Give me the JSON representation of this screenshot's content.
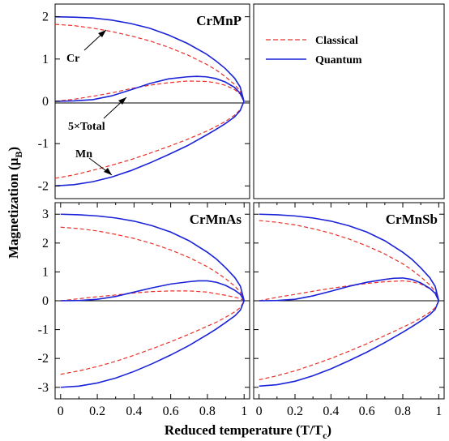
{
  "colors": {
    "classical": "#e8302a",
    "quantum": "#1a23d8",
    "axis": "#000000"
  },
  "legend": {
    "placement": "top-right panel",
    "classical": "Classical",
    "quantum": "Quantum"
  },
  "axes": {
    "xlabel": "Reduced temperature (T/T",
    "xlabel_sub": "c",
    "xlabel_close": ")",
    "ylabel": "Magnetization  (μ",
    "ylabel_sub": "B",
    "ylabel_close": ")"
  },
  "annotations": {
    "cr": "Cr",
    "total": "5×Total",
    "mn": "Mn"
  },
  "chart_data": [
    {
      "type": "line",
      "title": "CrMnP",
      "xlim": [
        0,
        1.03
      ],
      "ylim": [
        -2.3,
        2.3
      ],
      "xticks": [],
      "xtick_labels": [],
      "yticks": [
        -2,
        -1,
        0,
        1,
        2
      ],
      "ytick_labels": [
        "-2",
        "-1",
        "0",
        "1",
        "2"
      ],
      "series": [
        {
          "name": "Classical",
          "kind": "classical",
          "group": "Cr",
          "x": [
            0,
            0.1,
            0.2,
            0.3,
            0.4,
            0.5,
            0.6,
            0.7,
            0.8,
            0.85,
            0.9,
            0.95,
            0.98,
            1
          ],
          "y": [
            1.82,
            1.79,
            1.73,
            1.65,
            1.55,
            1.43,
            1.28,
            1.1,
            0.88,
            0.75,
            0.59,
            0.4,
            0.24,
            0
          ]
        },
        {
          "name": "Classical",
          "kind": "classical",
          "group": "Mn",
          "x": [
            0,
            0.1,
            0.2,
            0.3,
            0.4,
            0.5,
            0.6,
            0.7,
            0.8,
            0.85,
            0.9,
            0.95,
            0.98,
            1
          ],
          "y": [
            -1.82,
            -1.74,
            -1.63,
            -1.51,
            -1.38,
            -1.23,
            -1.07,
            -0.9,
            -0.71,
            -0.6,
            -0.48,
            -0.33,
            -0.2,
            0
          ]
        },
        {
          "name": "Classical",
          "kind": "classical",
          "group": "5×Total",
          "x": [
            0,
            0.1,
            0.2,
            0.3,
            0.4,
            0.5,
            0.6,
            0.7,
            0.8,
            0.85,
            0.9,
            0.95,
            0.98,
            1
          ],
          "y": [
            0,
            0.05,
            0.12,
            0.2,
            0.3,
            0.38,
            0.44,
            0.48,
            0.47,
            0.44,
            0.38,
            0.28,
            0.17,
            0
          ]
        },
        {
          "name": "Quantum",
          "kind": "quantum",
          "group": "Cr",
          "x": [
            0,
            0.1,
            0.2,
            0.3,
            0.4,
            0.5,
            0.6,
            0.7,
            0.8,
            0.85,
            0.9,
            0.95,
            0.98,
            1
          ],
          "y": [
            2.0,
            1.99,
            1.97,
            1.92,
            1.84,
            1.73,
            1.57,
            1.37,
            1.12,
            0.96,
            0.78,
            0.55,
            0.34,
            0
          ]
        },
        {
          "name": "Quantum",
          "kind": "quantum",
          "group": "Mn",
          "x": [
            0,
            0.1,
            0.2,
            0.3,
            0.4,
            0.5,
            0.6,
            0.7,
            0.8,
            0.85,
            0.9,
            0.95,
            0.98,
            1
          ],
          "y": [
            -2.0,
            -1.97,
            -1.9,
            -1.79,
            -1.64,
            -1.46,
            -1.26,
            -1.05,
            -0.8,
            -0.67,
            -0.53,
            -0.37,
            -0.22,
            0
          ]
        },
        {
          "name": "Quantum",
          "kind": "quantum",
          "group": "5×Total",
          "x": [
            0,
            0.1,
            0.2,
            0.3,
            0.4,
            0.5,
            0.6,
            0.7,
            0.75,
            0.8,
            0.85,
            0.9,
            0.95,
            0.98,
            1
          ],
          "y": [
            0,
            0.01,
            0.04,
            0.13,
            0.27,
            0.42,
            0.53,
            0.58,
            0.59,
            0.58,
            0.54,
            0.46,
            0.33,
            0.19,
            0
          ]
        }
      ]
    },
    {
      "type": "line",
      "title": "CrMnAs",
      "xlim": [
        -0.03,
        1.03
      ],
      "ylim": [
        -3.4,
        3.4
      ],
      "xticks": [
        0,
        0.2,
        0.4,
        0.6,
        0.8,
        1
      ],
      "xtick_labels": [
        "0",
        "0.2",
        "0.4",
        "0.6",
        "0.8",
        "1"
      ],
      "yticks": [
        -3,
        -2,
        -1,
        0,
        1,
        2,
        3
      ],
      "ytick_labels": [
        "-3",
        "-2",
        "-1",
        "0",
        "1",
        "2",
        "3"
      ],
      "series": [
        {
          "name": "Classical",
          "kind": "classical",
          "group": "Cr",
          "x": [
            0,
            0.1,
            0.2,
            0.3,
            0.4,
            0.5,
            0.6,
            0.7,
            0.8,
            0.85,
            0.9,
            0.95,
            0.98,
            1
          ],
          "y": [
            2.55,
            2.5,
            2.42,
            2.3,
            2.16,
            1.98,
            1.76,
            1.5,
            1.18,
            0.98,
            0.76,
            0.5,
            0.3,
            0
          ]
        },
        {
          "name": "Classical",
          "kind": "classical",
          "group": "Mn",
          "x": [
            0,
            0.1,
            0.2,
            0.3,
            0.4,
            0.5,
            0.6,
            0.7,
            0.8,
            0.85,
            0.9,
            0.95,
            0.98,
            1
          ],
          "y": [
            -2.55,
            -2.43,
            -2.28,
            -2.1,
            -1.89,
            -1.66,
            -1.42,
            -1.16,
            -0.88,
            -0.74,
            -0.57,
            -0.38,
            -0.23,
            0
          ]
        },
        {
          "name": "Classical",
          "kind": "classical",
          "group": "5×Total",
          "x": [
            0,
            0.1,
            0.2,
            0.3,
            0.4,
            0.5,
            0.6,
            0.7,
            0.8,
            0.85,
            0.9,
            0.95,
            0.98,
            1
          ],
          "y": [
            0,
            0.07,
            0.14,
            0.2,
            0.27,
            0.32,
            0.34,
            0.34,
            0.3,
            0.24,
            0.19,
            0.12,
            0.07,
            0
          ]
        },
        {
          "name": "Quantum",
          "kind": "quantum",
          "group": "Cr",
          "x": [
            0,
            0.1,
            0.2,
            0.3,
            0.4,
            0.5,
            0.6,
            0.7,
            0.8,
            0.85,
            0.9,
            0.95,
            0.98,
            1
          ],
          "y": [
            3.0,
            2.98,
            2.94,
            2.87,
            2.76,
            2.6,
            2.38,
            2.08,
            1.68,
            1.44,
            1.14,
            0.8,
            0.5,
            0
          ]
        },
        {
          "name": "Quantum",
          "kind": "quantum",
          "group": "Mn",
          "x": [
            0,
            0.1,
            0.2,
            0.3,
            0.4,
            0.5,
            0.6,
            0.7,
            0.8,
            0.85,
            0.9,
            0.95,
            0.98,
            1
          ],
          "y": [
            -3.0,
            -2.96,
            -2.85,
            -2.68,
            -2.45,
            -2.18,
            -1.88,
            -1.55,
            -1.17,
            -0.97,
            -0.75,
            -0.52,
            -0.32,
            0
          ]
        },
        {
          "name": "Quantum",
          "kind": "quantum",
          "group": "5×Total",
          "x": [
            0,
            0.1,
            0.2,
            0.3,
            0.4,
            0.5,
            0.6,
            0.7,
            0.75,
            0.8,
            0.85,
            0.9,
            0.95,
            0.98,
            1
          ],
          "y": [
            0,
            0.01,
            0.05,
            0.15,
            0.3,
            0.45,
            0.58,
            0.66,
            0.69,
            0.69,
            0.64,
            0.53,
            0.36,
            0.22,
            0
          ]
        }
      ]
    },
    {
      "type": "line",
      "title": "CrMnSb",
      "xlim": [
        -0.03,
        1.03
      ],
      "ylim": [
        -3.4,
        3.4
      ],
      "xticks": [
        0,
        0.2,
        0.4,
        0.6,
        0.8,
        1
      ],
      "xtick_labels": [
        "0",
        "0.2",
        "0.4",
        "0.6",
        "0.8",
        "1"
      ],
      "yticks": [
        -3,
        -2,
        -1,
        0,
        1,
        2,
        3
      ],
      "ytick_labels": [],
      "series": [
        {
          "name": "Classical",
          "kind": "classical",
          "group": "Cr",
          "x": [
            0,
            0.1,
            0.2,
            0.3,
            0.4,
            0.5,
            0.6,
            0.7,
            0.8,
            0.85,
            0.9,
            0.95,
            0.98,
            1
          ],
          "y": [
            2.78,
            2.72,
            2.63,
            2.5,
            2.34,
            2.14,
            1.9,
            1.62,
            1.28,
            1.07,
            0.83,
            0.55,
            0.33,
            0
          ]
        },
        {
          "name": "Classical",
          "kind": "classical",
          "group": "Mn",
          "x": [
            0,
            0.1,
            0.2,
            0.3,
            0.4,
            0.5,
            0.6,
            0.7,
            0.8,
            0.85,
            0.9,
            0.95,
            0.98,
            1
          ],
          "y": [
            -2.74,
            -2.6,
            -2.43,
            -2.22,
            -2.0,
            -1.75,
            -1.49,
            -1.21,
            -0.92,
            -0.77,
            -0.6,
            -0.4,
            -0.24,
            0
          ]
        },
        {
          "name": "Classical",
          "kind": "classical",
          "group": "5×Total",
          "x": [
            0,
            0.1,
            0.2,
            0.3,
            0.4,
            0.5,
            0.6,
            0.7,
            0.8,
            0.85,
            0.9,
            0.95,
            0.98,
            1
          ],
          "y": [
            0,
            0.12,
            0.22,
            0.33,
            0.43,
            0.52,
            0.6,
            0.66,
            0.69,
            0.66,
            0.58,
            0.42,
            0.26,
            0
          ]
        },
        {
          "name": "Quantum",
          "kind": "quantum",
          "group": "Cr",
          "x": [
            0,
            0.1,
            0.2,
            0.3,
            0.4,
            0.5,
            0.6,
            0.7,
            0.8,
            0.85,
            0.9,
            0.95,
            0.98,
            1
          ],
          "y": [
            3.0,
            2.98,
            2.94,
            2.87,
            2.76,
            2.6,
            2.38,
            2.08,
            1.68,
            1.44,
            1.14,
            0.8,
            0.5,
            0
          ]
        },
        {
          "name": "Quantum",
          "kind": "quantum",
          "group": "Mn",
          "x": [
            0,
            0.1,
            0.2,
            0.3,
            0.4,
            0.5,
            0.6,
            0.7,
            0.8,
            0.85,
            0.9,
            0.95,
            0.98,
            1
          ],
          "y": [
            -2.96,
            -2.91,
            -2.79,
            -2.6,
            -2.36,
            -2.08,
            -1.78,
            -1.45,
            -1.09,
            -0.9,
            -0.7,
            -0.48,
            -0.3,
            0
          ]
        },
        {
          "name": "Quantum",
          "kind": "quantum",
          "group": "5×Total",
          "x": [
            0,
            0.1,
            0.2,
            0.3,
            0.4,
            0.5,
            0.6,
            0.7,
            0.75,
            0.8,
            0.85,
            0.9,
            0.95,
            0.98,
            1
          ],
          "y": [
            0,
            0.01,
            0.05,
            0.17,
            0.33,
            0.5,
            0.64,
            0.74,
            0.78,
            0.79,
            0.74,
            0.62,
            0.43,
            0.26,
            0
          ]
        }
      ]
    }
  ]
}
